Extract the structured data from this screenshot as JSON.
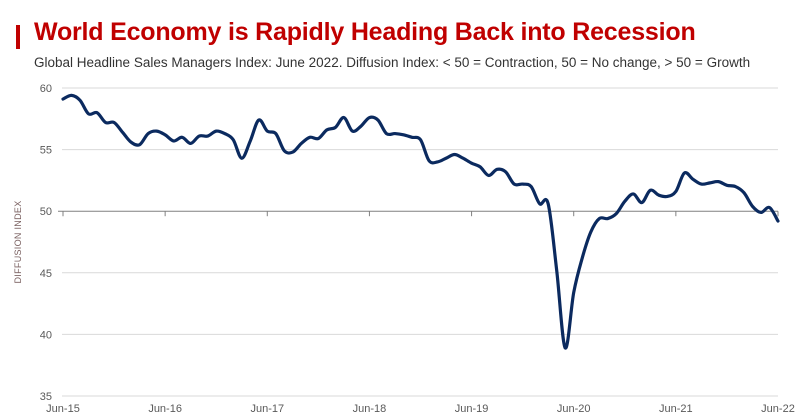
{
  "chart_data": {
    "type": "line",
    "title": "World Economy is Rapidly Heading Back into Recession",
    "subtitle": "Global Headline Sales Managers Index: June 2022. Diffusion Index: < 50 = Contraction, 50 = No change, > 50 = Growth",
    "xlabel": "",
    "ylabel": "DIFFUSION INDEX",
    "ylim": [
      35,
      60
    ],
    "yticks": [
      60,
      55,
      50,
      45,
      40,
      35
    ],
    "xtick_labels": [
      "Jun-15",
      "Jun-16",
      "Jun-17",
      "Jun-18",
      "Jun-19",
      "Jun-20",
      "Jun-21",
      "Jun-22"
    ],
    "x_start": "Jun-15",
    "x_end": "Jun-22",
    "frequency": "monthly",
    "reference_line": 50,
    "grid": true,
    "colors": {
      "line": "#0b2a5f",
      "title": "#c00000",
      "grid": "#d9d9d9",
      "axis": "#808080"
    },
    "values": [
      59.1,
      59.4,
      59.0,
      57.9,
      58.0,
      57.2,
      57.2,
      56.4,
      55.6,
      55.4,
      56.3,
      56.5,
      56.2,
      55.7,
      56.0,
      55.5,
      56.1,
      56.1,
      56.5,
      56.3,
      55.8,
      54.3,
      55.7,
      57.4,
      56.5,
      56.3,
      54.9,
      54.8,
      55.5,
      56.0,
      55.9,
      56.6,
      56.8,
      57.6,
      56.5,
      56.9,
      57.6,
      57.4,
      56.3,
      56.3,
      56.2,
      56.0,
      55.8,
      54.1,
      54.0,
      54.3,
      54.6,
      54.3,
      53.9,
      53.6,
      52.9,
      53.4,
      53.2,
      52.2,
      52.2,
      52.0,
      50.6,
      50.6,
      45.2,
      38.9,
      43.4,
      46.2,
      48.3,
      49.4,
      49.4,
      49.8,
      50.8,
      51.4,
      50.7,
      51.7,
      51.3,
      51.2,
      51.6,
      53.1,
      52.6,
      52.2,
      52.3,
      52.4,
      52.1,
      52.0,
      51.5,
      50.4,
      49.9,
      50.3,
      49.2
    ]
  }
}
